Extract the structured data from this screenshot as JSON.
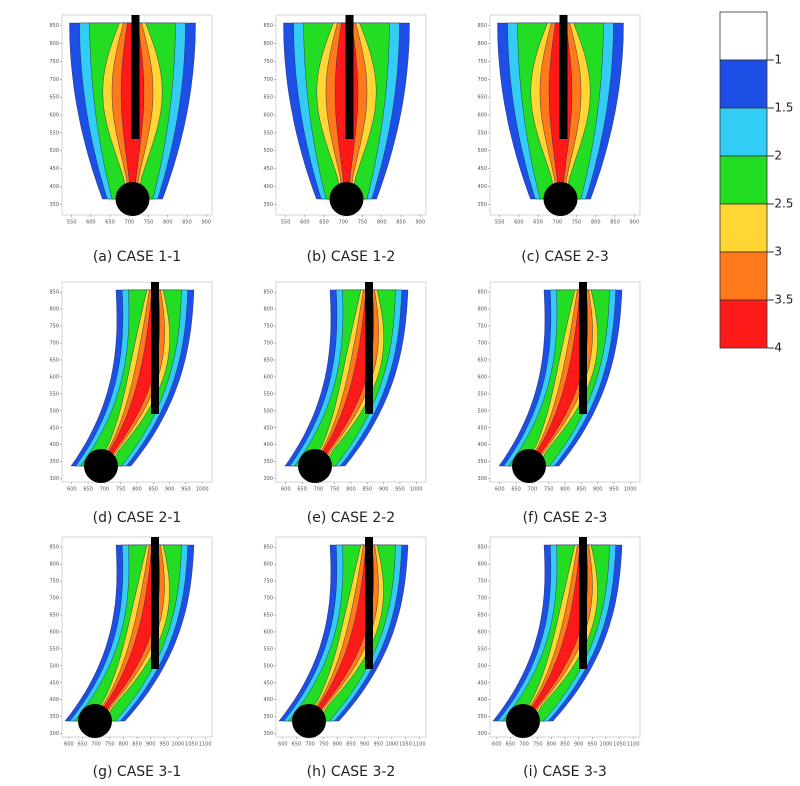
{
  "colorbar": {
    "levels": [
      -1,
      -1.5,
      -2,
      -2.5,
      -3,
      -3.5,
      -4
    ],
    "colors": [
      "#ffffff",
      "#1d4fe6",
      "#33ccf5",
      "#22dd22",
      "#ffd633",
      "#ff7a1a",
      "#ff1a1a"
    ]
  },
  "panels": [
    {
      "caption": "(a) CASE 1-1",
      "xticks": [
        550,
        600,
        650,
        700,
        750,
        800,
        850,
        900
      ],
      "yticks": [
        350,
        400,
        450,
        500,
        550,
        600,
        650,
        700,
        750,
        800,
        850
      ],
      "xlim": [
        525,
        915
      ],
      "ylim": [
        320,
        880
      ]
    },
    {
      "caption": "(b) CASE 1-2",
      "xticks": [
        550,
        600,
        650,
        700,
        750,
        800,
        850,
        900
      ],
      "yticks": [
        350,
        400,
        450,
        500,
        550,
        600,
        650,
        700,
        750,
        800,
        850
      ],
      "xlim": [
        525,
        915
      ],
      "ylim": [
        320,
        880
      ]
    },
    {
      "caption": "(c) CASE 2-3",
      "xticks": [
        550,
        600,
        650,
        700,
        750,
        800,
        850,
        900
      ],
      "yticks": [
        350,
        400,
        450,
        500,
        550,
        600,
        650,
        700,
        750,
        800,
        850
      ],
      "xlim": [
        525,
        915
      ],
      "ylim": [
        320,
        880
      ]
    },
    {
      "caption": "(d) CASE 2-1",
      "xticks": [
        600,
        650,
        700,
        750,
        800,
        850,
        900,
        950,
        1000
      ],
      "yticks": [
        300,
        350,
        400,
        450,
        500,
        550,
        600,
        650,
        700,
        750,
        800,
        850
      ],
      "xlim": [
        570,
        1030
      ],
      "ylim": [
        290,
        880
      ]
    },
    {
      "caption": "(e) CASE 2-2",
      "xticks": [
        600,
        650,
        700,
        750,
        800,
        850,
        900,
        950,
        1000
      ],
      "yticks": [
        300,
        350,
        400,
        450,
        500,
        550,
        600,
        650,
        700,
        750,
        800,
        850
      ],
      "xlim": [
        570,
        1030
      ],
      "ylim": [
        290,
        880
      ]
    },
    {
      "caption": "(f) CASE 2-3",
      "xticks": [
        600,
        650,
        700,
        750,
        800,
        850,
        900,
        950,
        1000
      ],
      "yticks": [
        300,
        350,
        400,
        450,
        500,
        550,
        600,
        650,
        700,
        750,
        800,
        850
      ],
      "xlim": [
        570,
        1030
      ],
      "ylim": [
        290,
        880
      ]
    },
    {
      "caption": "(g) CASE 3-1",
      "xticks": [
        600,
        650,
        700,
        750,
        800,
        850,
        900,
        950,
        1000,
        1050,
        1100
      ],
      "yticks": [
        300,
        350,
        400,
        450,
        500,
        550,
        600,
        650,
        700,
        750,
        800,
        850
      ],
      "xlim": [
        575,
        1125
      ],
      "ylim": [
        290,
        880
      ]
    },
    {
      "caption": "(h) CASE 3-2",
      "xticks": [
        600,
        650,
        700,
        750,
        800,
        850,
        900,
        950,
        1000,
        1050,
        1100
      ],
      "yticks": [
        300,
        350,
        400,
        450,
        500,
        550,
        600,
        650,
        700,
        750,
        800,
        850
      ],
      "xlim": [
        575,
        1125
      ],
      "ylim": [
        290,
        880
      ]
    },
    {
      "caption": "(i) CASE 3-3",
      "xticks": [
        600,
        650,
        700,
        750,
        800,
        850,
        900,
        950,
        1000,
        1050,
        1100
      ],
      "yticks": [
        300,
        350,
        400,
        450,
        500,
        550,
        600,
        650,
        700,
        750,
        800,
        850
      ],
      "xlim": [
        575,
        1125
      ],
      "ylim": [
        290,
        880
      ]
    }
  ]
}
